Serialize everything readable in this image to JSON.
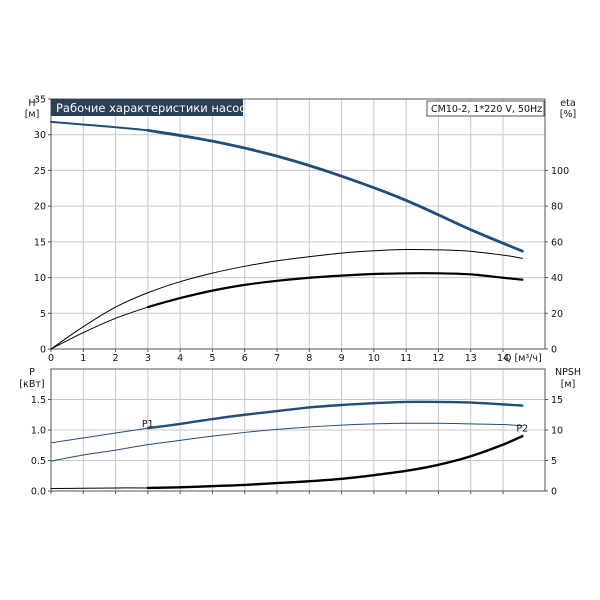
{
  "title": "Рабочие характеристики насоса",
  "model": "CM10-2, 1*220 V, 50Hz",
  "colors": {
    "title_bg": "#2b3f55",
    "blue": "#1f4e7a",
    "black": "#000000",
    "grid": "#c8c8c8"
  },
  "chart_data": [
    {
      "type": "line",
      "name": "head-efficiency",
      "xlabel": "Q [м³/ч]",
      "x_ticks": [
        0,
        1,
        2,
        3,
        4,
        5,
        6,
        7,
        8,
        9,
        10,
        11,
        12,
        13,
        14
      ],
      "xlim": [
        0,
        15.3
      ],
      "y_left": {
        "label_line1": "H",
        "label_line2": "[м]",
        "lim": [
          0,
          35
        ],
        "ticks": [
          0,
          5,
          10,
          15,
          20,
          25,
          30,
          35
        ]
      },
      "y_right": {
        "label_line1": "eta",
        "label_line2": "[%]",
        "lim": [
          0,
          140
        ],
        "ticks": [
          0,
          20,
          40,
          60,
          80,
          100
        ]
      },
      "grid": true,
      "series": [
        {
          "axis": "left",
          "color": "blue",
          "width": 2,
          "x": [
            0,
            3,
            5,
            7,
            9,
            11,
            13,
            14.6
          ],
          "y": [
            31.8,
            30.6,
            29.1,
            27.0,
            24.2,
            20.8,
            16.7,
            13.7
          ]
        },
        {
          "axis": "left",
          "color": "blue",
          "width": 2.8,
          "x": [
            3,
            5,
            7,
            9,
            11,
            13,
            14.6
          ],
          "y": [
            30.6,
            29.1,
            27.0,
            24.2,
            20.8,
            16.7,
            13.7
          ]
        },
        {
          "axis": "right",
          "color": "black",
          "width": 1,
          "x": [
            0,
            1,
            2,
            3,
            4,
            5,
            6,
            7,
            8,
            9,
            10,
            11,
            12,
            13,
            14,
            14.6
          ],
          "y": [
            0,
            12.5,
            23.5,
            31.5,
            37.7,
            42.5,
            46.3,
            49.4,
            51.7,
            53.7,
            55.0,
            55.7,
            55.5,
            54.7,
            52.6,
            50.8
          ]
        },
        {
          "axis": "right",
          "color": "black",
          "width": 1,
          "x": [
            0,
            1,
            2,
            3
          ],
          "y": [
            0,
            9.2,
            17.2,
            23.5
          ]
        },
        {
          "axis": "right",
          "color": "black",
          "width": 2.2,
          "x": [
            3,
            4,
            5,
            6,
            7,
            8,
            9,
            10,
            11,
            12,
            13,
            14,
            14.6
          ],
          "y": [
            23.5,
            28.5,
            32.7,
            35.9,
            38.2,
            39.9,
            41.1,
            42.0,
            42.4,
            42.4,
            41.8,
            39.9,
            38.8
          ]
        }
      ]
    },
    {
      "type": "line",
      "name": "power-npsh",
      "x_ticks": [
        0,
        1,
        2,
        3,
        4,
        5,
        6,
        7,
        8,
        9,
        10,
        11,
        12,
        13,
        14
      ],
      "xlim": [
        0,
        15.3
      ],
      "y_left": {
        "label_line1": "P",
        "label_line2": "[кВт]",
        "lim": [
          0,
          2.0
        ],
        "ticks": [
          0.0,
          0.5,
          1.0,
          1.5
        ],
        "tick_labels": [
          "0.0",
          "0.5",
          "1.0",
          "1.5"
        ]
      },
      "y_right": {
        "label_line1": "NPSH",
        "label_line2": "[м]",
        "lim": [
          0,
          20
        ],
        "ticks": [
          0,
          5,
          10,
          15
        ]
      },
      "grid": true,
      "series": [
        {
          "axis": "left",
          "color": "blue",
          "width": 1,
          "label": "P1",
          "x": [
            0,
            1,
            2,
            3
          ],
          "y": [
            0.79,
            0.87,
            0.95,
            1.03
          ]
        },
        {
          "axis": "left",
          "color": "blue",
          "width": 2.4,
          "label": "",
          "x": [
            3,
            4,
            5,
            6,
            7,
            8,
            9,
            10,
            11,
            12,
            13,
            14,
            14.6
          ],
          "y": [
            1.03,
            1.1,
            1.18,
            1.25,
            1.31,
            1.37,
            1.41,
            1.44,
            1.46,
            1.46,
            1.45,
            1.42,
            1.4
          ]
        },
        {
          "axis": "left",
          "color": "blue",
          "width": 1,
          "label": "P2",
          "x": [
            0,
            1,
            2,
            3,
            4,
            5,
            6,
            7,
            8,
            9,
            10,
            11,
            12,
            13,
            14,
            14.6
          ],
          "y": [
            0.49,
            0.59,
            0.67,
            0.76,
            0.83,
            0.9,
            0.96,
            1.01,
            1.05,
            1.08,
            1.1,
            1.11,
            1.11,
            1.1,
            1.09,
            1.07
          ]
        },
        {
          "axis": "right",
          "color": "black",
          "width": 1,
          "label": "",
          "x": [
            0,
            1,
            2,
            3
          ],
          "y": [
            0.4,
            0.45,
            0.5,
            0.5
          ]
        },
        {
          "axis": "right",
          "color": "black",
          "width": 2.4,
          "label": "",
          "x": [
            3,
            4,
            5,
            6,
            7,
            8,
            9,
            10,
            11,
            12,
            13,
            14,
            14.6
          ],
          "y": [
            0.5,
            0.6,
            0.8,
            1.0,
            1.3,
            1.6,
            2.0,
            2.6,
            3.3,
            4.3,
            5.7,
            7.6,
            9.0
          ]
        }
      ]
    }
  ]
}
